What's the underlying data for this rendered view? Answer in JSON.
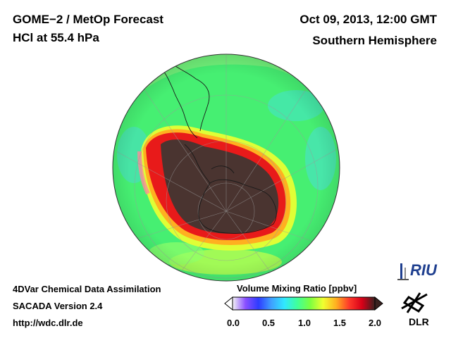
{
  "header": {
    "title_line1": "GOME−2 / MetOp Forecast",
    "title_line2": "HCl at 55.4 hPa",
    "date": "Oct 09, 2013, 12:00 GMT",
    "region": "Southern Hemisphere"
  },
  "footer": {
    "line1": "4DVar Chemical Data Assimilation",
    "line2": "SACADA Version 2.4",
    "line3": "http://wdc.dlr.de"
  },
  "colorbar": {
    "title": "Volume Mixing Ratio [ppbv]",
    "ticks": [
      "0.0",
      "0.5",
      "1.0",
      "1.5",
      "2.0"
    ],
    "colors": [
      "#f4f4f4",
      "#8a4fff",
      "#2e3cff",
      "#3fa0ff",
      "#30e8ff",
      "#40ff9a",
      "#7cff40",
      "#f0ff30",
      "#ffb020",
      "#ff3a2a",
      "#d80018",
      "#3a2220"
    ]
  },
  "logos": {
    "riu": "RIU",
    "dlr": "DLR"
  },
  "map": {
    "ocean_color": "#46ef72",
    "vortex_color": "#4a3430",
    "rim_color": "#e81a1a"
  }
}
